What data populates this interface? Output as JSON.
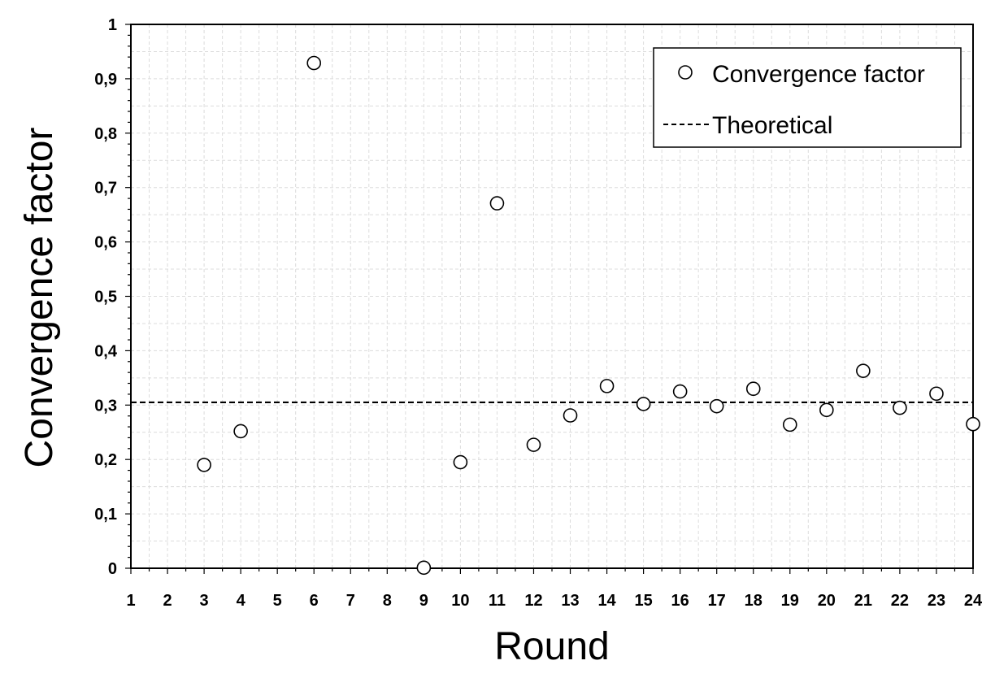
{
  "chart_data": {
    "type": "scatter",
    "xlabel": "Round",
    "ylabel": "Convergence factor",
    "xlim": [
      1,
      24
    ],
    "ylim": [
      0,
      1
    ],
    "x_ticks": [
      "1",
      "2",
      "3",
      "4",
      "5",
      "6",
      "7",
      "8",
      "9",
      "10",
      "11",
      "12",
      "13",
      "14",
      "15",
      "16",
      "17",
      "18",
      "19",
      "20",
      "21",
      "22",
      "23",
      "24"
    ],
    "y_ticks": [
      "0",
      "0,1",
      "0,2",
      "0,3",
      "0,4",
      "0,5",
      "0,6",
      "0,7",
      "0,8",
      "0,9",
      "1"
    ],
    "grid": true,
    "legend_position": "top-right",
    "series": [
      {
        "name": "Convergence factor",
        "marker": "open-circle",
        "x": [
          3,
          4,
          6,
          9,
          10,
          11,
          12,
          13,
          14,
          15,
          16,
          17,
          18,
          19,
          20,
          21,
          22,
          23,
          24
        ],
        "y": [
          0.19,
          0.252,
          0.929,
          0.001,
          0.195,
          0.671,
          0.227,
          0.281,
          0.335,
          0.302,
          0.325,
          0.298,
          0.33,
          0.264,
          0.291,
          0.363,
          0.295,
          0.321,
          0.265
        ]
      },
      {
        "name": "Theoretical",
        "style": "dashed-line",
        "y_const": 0.305
      }
    ]
  }
}
